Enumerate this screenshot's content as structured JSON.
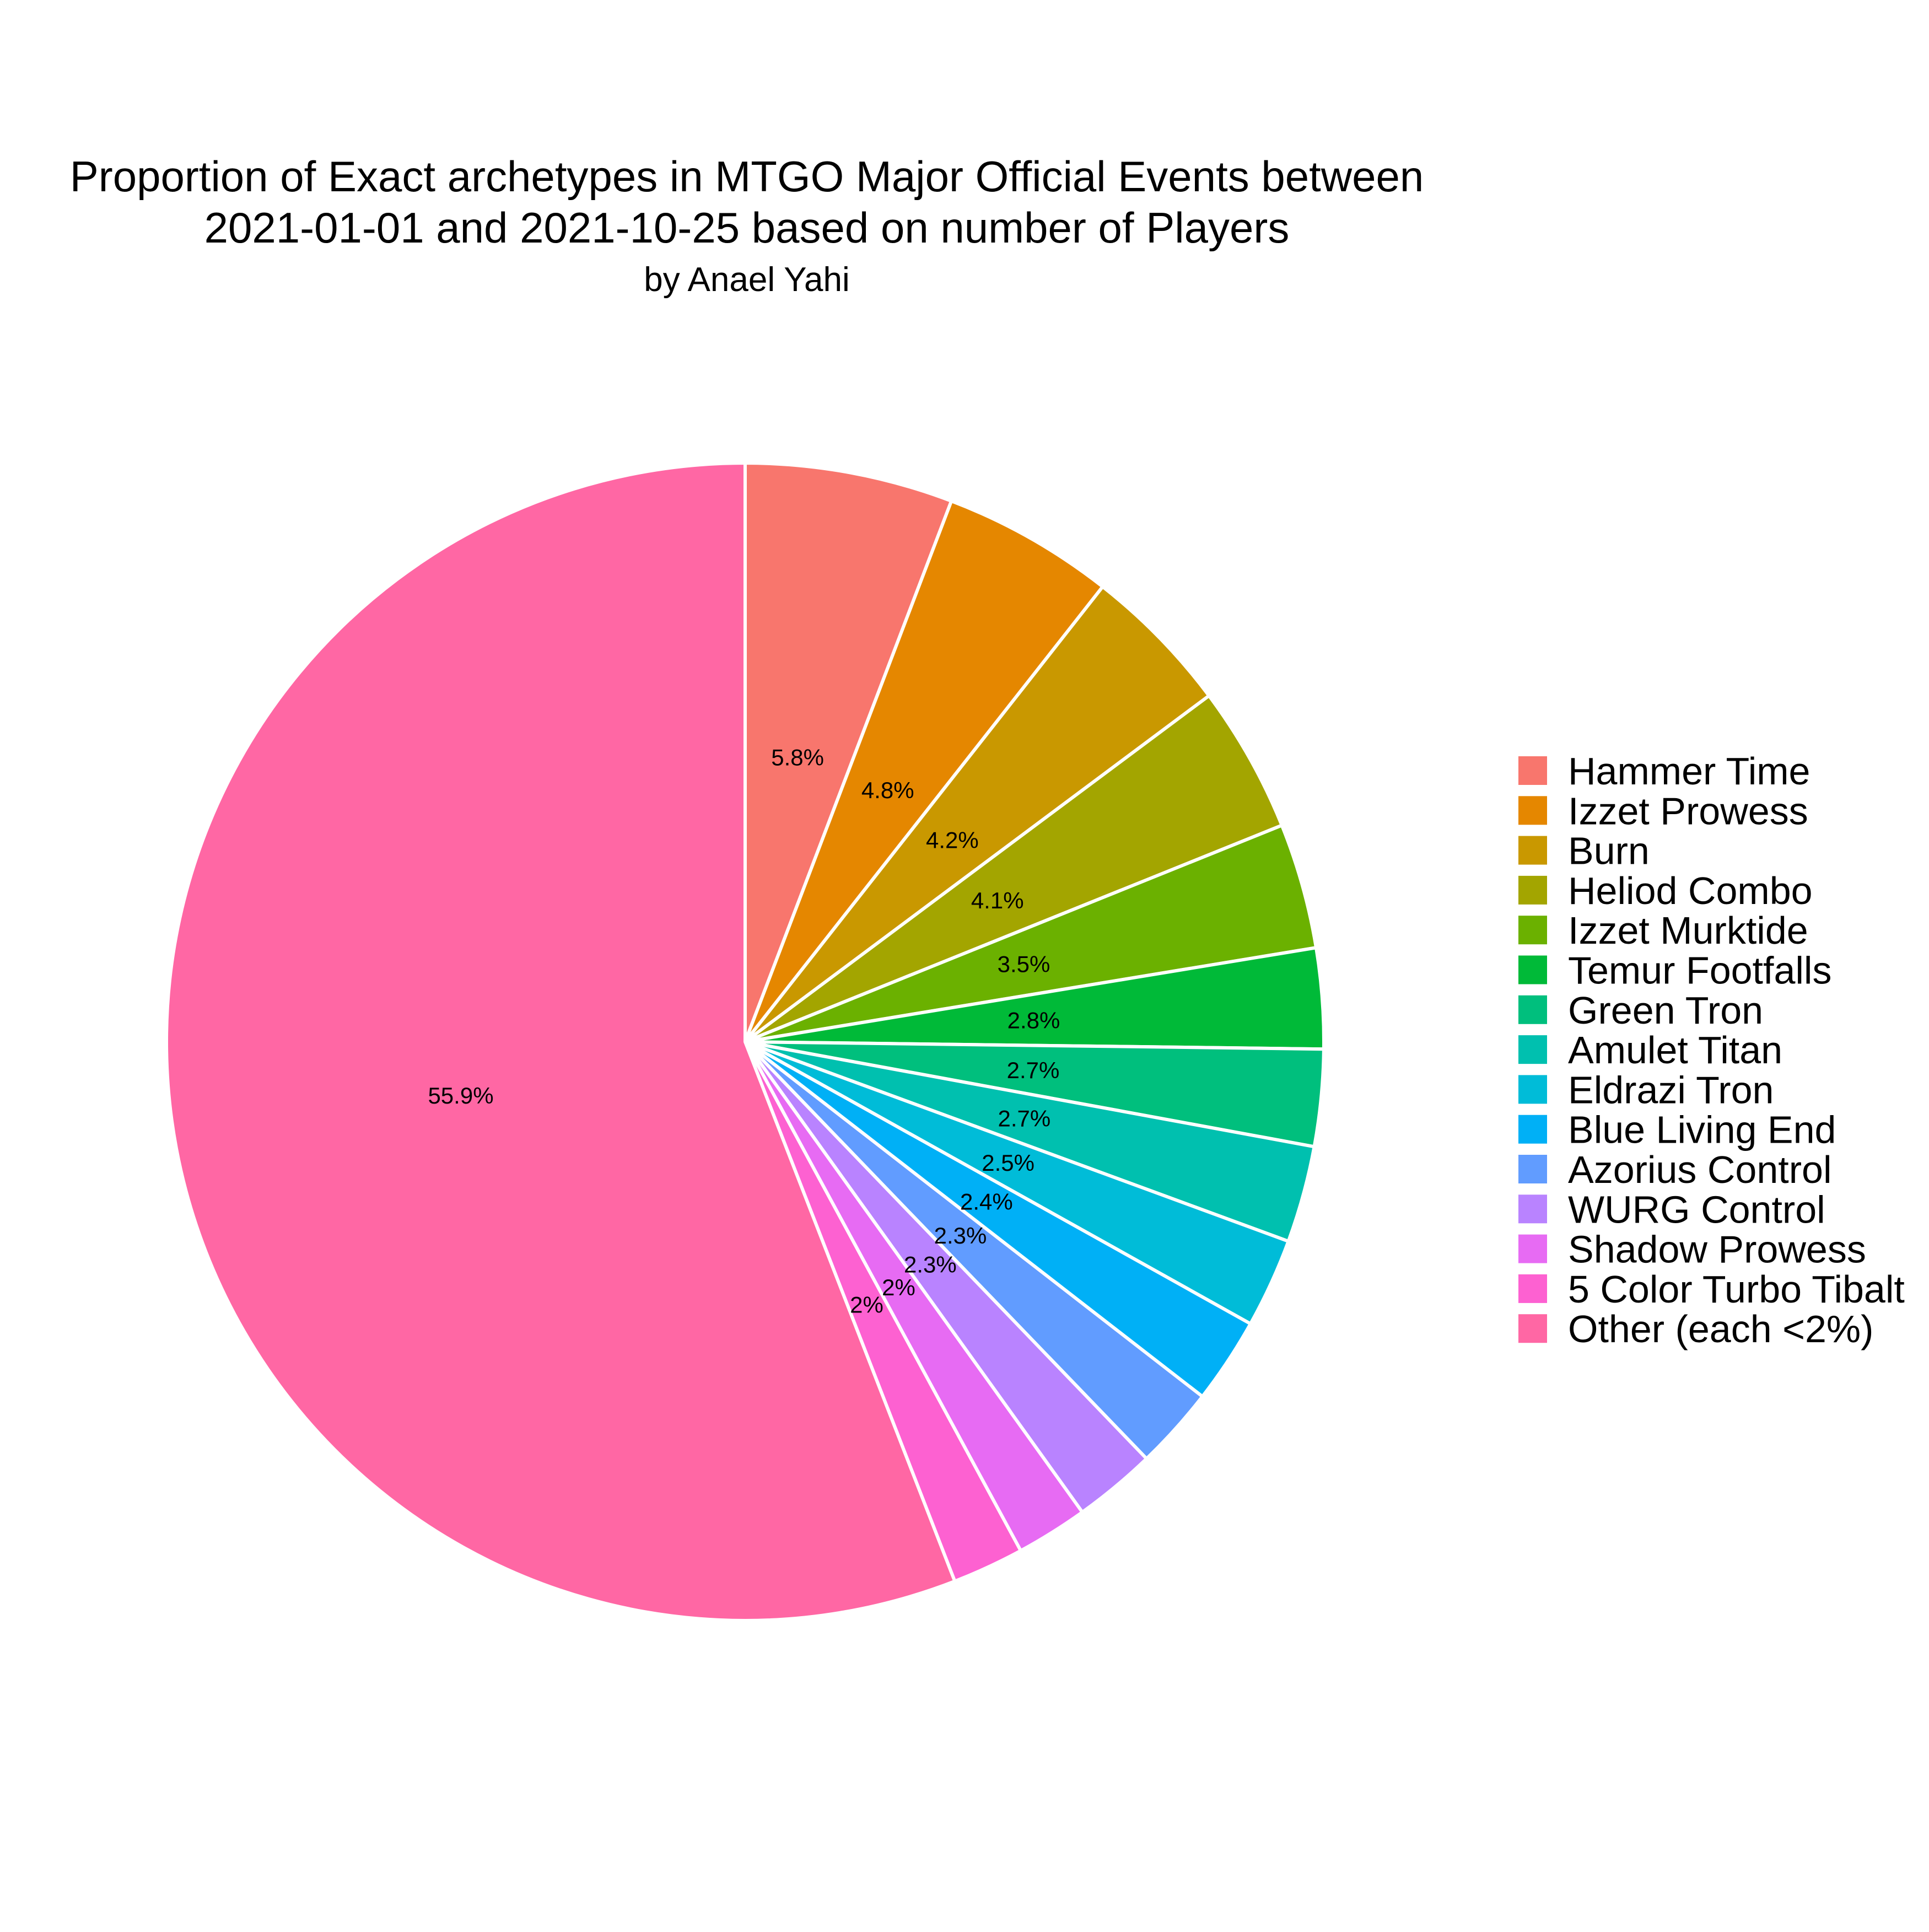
{
  "chart_data": {
    "type": "pie",
    "title": "Proportion of Exact archetypes in MTGO Major Official Events between 2021-01-01 and 2021-10-25 based on number of Players",
    "title_lines": [
      "Proportion of Exact archetypes in MTGO Major Official Events between",
      "2021-01-01 and 2021-10-25 based on number of Players"
    ],
    "subtitle": "by Anael Yahi",
    "legend_position": "right",
    "start_angle": "12 o'clock",
    "direction": "clockwise",
    "slices": [
      {
        "label": "Hammer Time",
        "value": 5.8,
        "display": "5.8%",
        "color": "#F8766D"
      },
      {
        "label": "Izzet Prowess",
        "value": 4.8,
        "display": "4.8%",
        "color": "#E58700"
      },
      {
        "label": "Burn",
        "value": 4.2,
        "display": "4.2%",
        "color": "#C99800"
      },
      {
        "label": "Heliod Combo",
        "value": 4.1,
        "display": "4.1%",
        "color": "#A3A500"
      },
      {
        "label": "Izzet Murktide",
        "value": 3.5,
        "display": "3.5%",
        "color": "#6BB100"
      },
      {
        "label": "Temur Footfalls",
        "value": 2.8,
        "display": "2.8%",
        "color": "#00BA38"
      },
      {
        "label": "Green Tron",
        "value": 2.7,
        "display": "2.7%",
        "color": "#00BF7D"
      },
      {
        "label": "Amulet Titan",
        "value": 2.7,
        "display": "2.7%",
        "color": "#00C0AF"
      },
      {
        "label": "Eldrazi Tron",
        "value": 2.5,
        "display": "2.5%",
        "color": "#00BCD8"
      },
      {
        "label": "Blue Living End",
        "value": 2.4,
        "display": "2.4%",
        "color": "#00B0F6"
      },
      {
        "label": "Azorius Control",
        "value": 2.3,
        "display": "2.3%",
        "color": "#619CFF"
      },
      {
        "label": "WURG Control",
        "value": 2.3,
        "display": "2.3%",
        "color": "#B983FF"
      },
      {
        "label": "Shadow Prowess",
        "value": 2.0,
        "display": "2%",
        "color": "#E76BF3"
      },
      {
        "label": "5 Color Turbo Tibalt",
        "value": 2.0,
        "display": "2%",
        "color": "#FD61D1"
      },
      {
        "label": "Other (each <2%)",
        "value": 55.9,
        "display": "55.9%",
        "color": "#FF67A4"
      }
    ]
  }
}
